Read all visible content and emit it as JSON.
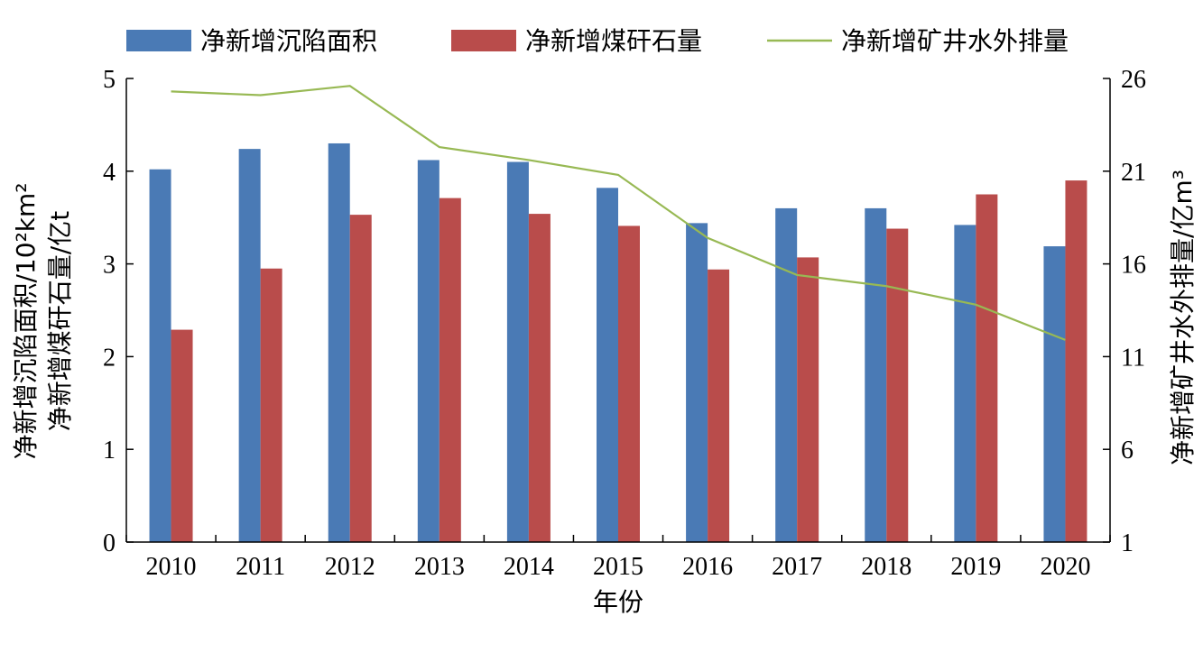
{
  "chart_data": {
    "type": "bar",
    "xlabel": "年份",
    "ylabel_left_line1": "净新增沉陷面积/10²km²",
    "ylabel_left_line2": "净新增煤矸石量/亿t",
    "ylabel_right": "净新增矿井水外排量/亿m³",
    "categories": [
      "2010",
      "2011",
      "2012",
      "2013",
      "2014",
      "2015",
      "2016",
      "2017",
      "2018",
      "2019",
      "2020"
    ],
    "y_left_lim": [
      0,
      5
    ],
    "y_left_ticks": [
      "0",
      "1",
      "2",
      "3",
      "4",
      "5"
    ],
    "y_right_lim": [
      1,
      26
    ],
    "y_right_ticks": [
      "1",
      "6",
      "11",
      "16",
      "21",
      "26"
    ],
    "legend_position": "top",
    "grid": false,
    "series": [
      {
        "name": "净新增沉陷面积",
        "kind": "bar",
        "axis": "left",
        "color": "#4a7ab5",
        "values": [
          4.02,
          4.24,
          4.3,
          4.12,
          4.1,
          3.82,
          3.44,
          3.6,
          3.6,
          3.42,
          3.19
        ]
      },
      {
        "name": "净新增煤矸石量",
        "kind": "bar",
        "axis": "left",
        "color": "#b94c4b",
        "values": [
          2.29,
          2.95,
          3.53,
          3.71,
          3.54,
          3.41,
          2.94,
          3.07,
          3.38,
          3.75,
          3.9
        ]
      },
      {
        "name": "净新增矿井水外排量",
        "kind": "line",
        "axis": "right",
        "color": "#98b954",
        "values": [
          25.3,
          25.1,
          25.6,
          22.3,
          21.6,
          20.8,
          17.4,
          15.4,
          14.8,
          13.8,
          11.9
        ]
      }
    ]
  }
}
